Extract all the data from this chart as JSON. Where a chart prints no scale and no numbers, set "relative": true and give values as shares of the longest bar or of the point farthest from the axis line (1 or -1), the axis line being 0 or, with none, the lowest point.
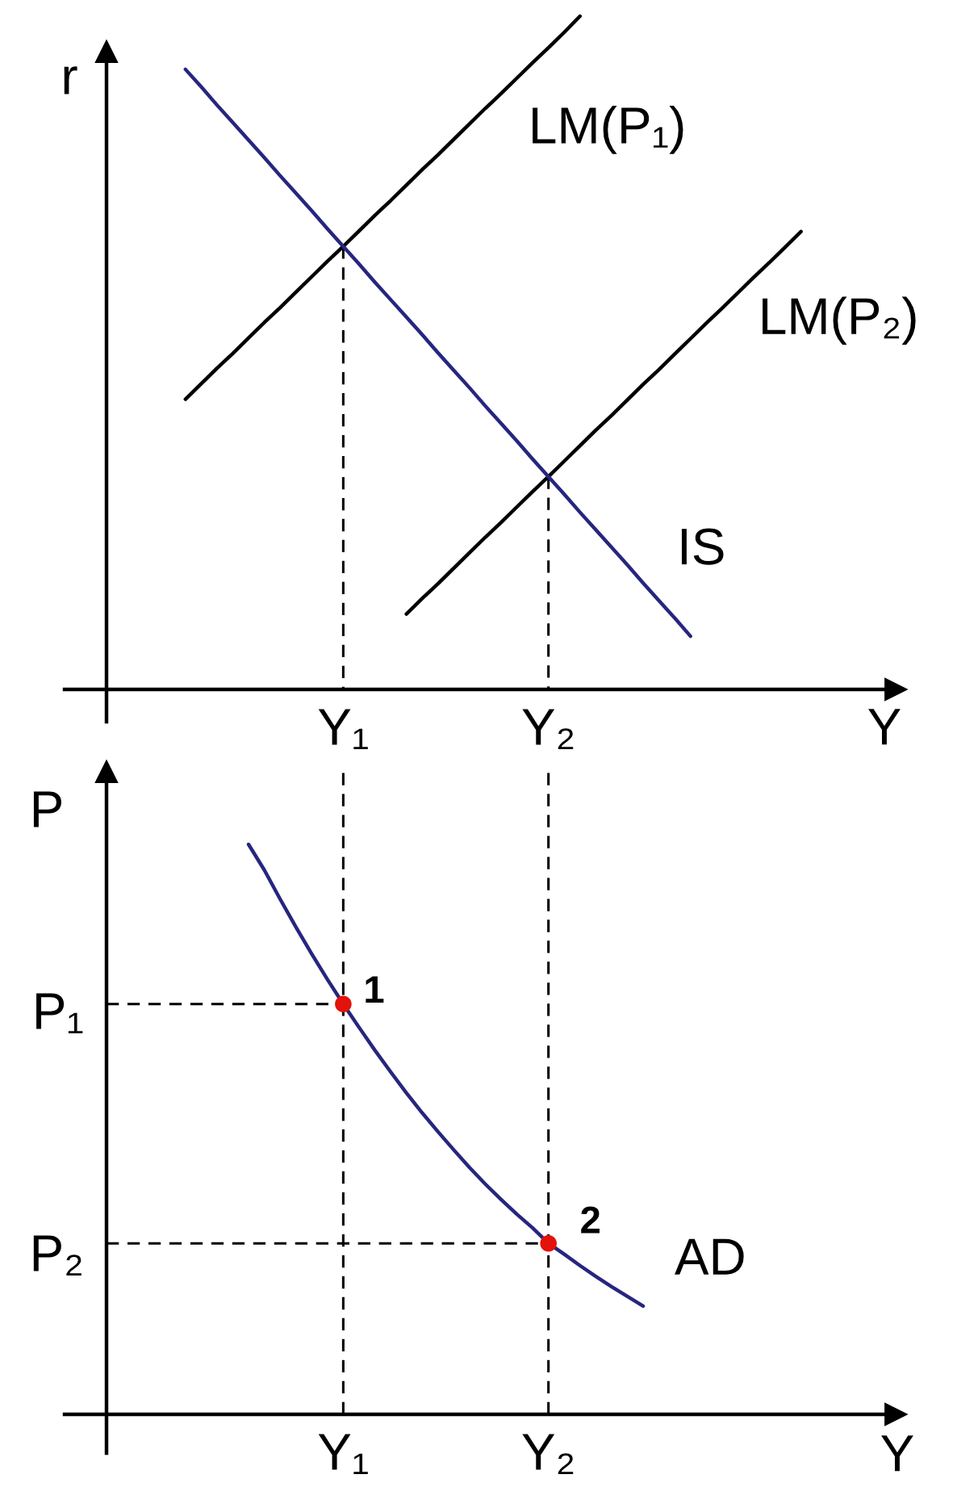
{
  "chart_data": [
    {
      "type": "line",
      "relative": true,
      "xlabel": "Y",
      "ylabel": "r",
      "line_style": "solid",
      "categories": [
        null,
        null,
        null,
        null,
        null,
        null,
        null,
        null,
        null,
        null,
        null,
        null,
        null,
        null,
        null,
        "Y₁",
        null,
        null,
        null,
        null,
        null,
        null,
        null,
        null,
        null,
        null,
        null,
        null,
        "Y₂",
        null,
        null,
        null,
        null,
        null,
        null,
        null,
        null,
        null,
        null,
        null,
        null,
        null,
        null,
        null,
        null,
        null,
        null,
        null,
        null,
        null,
        null
      ],
      "series": [
        {
          "name": "LM(P₁)",
          "color": "#000000",
          "values": [
            null,
            null,
            null,
            null,
            null,
            0.431,
            0.454,
            0.477,
            0.499,
            0.522,
            0.545,
            0.567,
            0.59,
            0.613,
            0.636,
            0.658,
            0.681,
            0.704,
            0.726,
            0.749,
            0.772,
            0.794,
            0.817,
            0.84,
            0.863,
            0.885,
            0.908,
            0.931,
            0.953,
            0.976,
            1.0,
            null,
            null,
            null,
            null,
            null,
            null,
            null,
            null,
            null,
            null,
            null,
            null,
            null,
            null,
            null,
            null,
            null,
            null,
            null,
            null
          ]
        },
        {
          "name": "LM(P₂)",
          "color": "#000000",
          "values": [
            null,
            null,
            null,
            null,
            null,
            null,
            null,
            null,
            null,
            null,
            null,
            null,
            null,
            null,
            null,
            null,
            null,
            null,
            null,
            0.112,
            0.135,
            0.157,
            0.18,
            0.203,
            0.226,
            0.248,
            0.271,
            0.294,
            0.316,
            0.339,
            0.362,
            0.385,
            0.407,
            0.43,
            0.453,
            0.475,
            0.498,
            0.521,
            0.544,
            0.566,
            0.589,
            0.612,
            0.634,
            0.657,
            0.68,
            null,
            null,
            null,
            null,
            null,
            null
          ]
        },
        {
          "name": "IS",
          "color": "#26267f",
          "values": [
            null,
            null,
            null,
            null,
            null,
            0.921,
            0.895,
            0.868,
            0.842,
            0.816,
            0.79,
            0.763,
            0.737,
            0.711,
            0.684,
            0.658,
            0.632,
            0.605,
            0.579,
            0.553,
            0.527,
            0.5,
            0.474,
            0.448,
            0.421,
            0.395,
            0.369,
            0.342,
            0.316,
            0.29,
            0.263,
            0.237,
            0.211,
            0.185,
            0.158,
            0.132,
            0.106,
            0.079,
            null,
            null,
            null,
            null,
            null,
            null,
            null,
            null,
            null,
            null,
            null,
            null,
            null
          ]
        },
        {
          "color": "#000000",
          "line_style": "dashed",
          "x": [
            "Y₁",
            "Y₁"
          ],
          "values": [
            0.658,
            0
          ]
        },
        {
          "color": "#000000",
          "line_style": "dashed",
          "x": [
            "Y₂",
            "Y₂"
          ],
          "values": [
            0.316,
            0
          ]
        }
      ]
    },
    {
      "type": "line",
      "relative": true,
      "xlabel": "Y",
      "ylabel": "P",
      "line_style": "solid",
      "categories": [
        null,
        null,
        null,
        null,
        null,
        null,
        null,
        null,
        null,
        null,
        null,
        null,
        null,
        null,
        null,
        "Y₁",
        null,
        null,
        null,
        null,
        null,
        null,
        null,
        null,
        null,
        null,
        null,
        null,
        "Y₂",
        null,
        null,
        null,
        null,
        null,
        null,
        null,
        null,
        null,
        null,
        null,
        null,
        null,
        null,
        null,
        null,
        null,
        null,
        null,
        null,
        null,
        null
      ],
      "series": [
        {
          "name": "AD",
          "color": "#26267f",
          "values": [
            null,
            null,
            null,
            null,
            null,
            null,
            null,
            null,
            null,
            1.0,
            0.955,
            0.904,
            0.855,
            0.808,
            0.763,
            0.72,
            0.679,
            0.639,
            0.601,
            0.564,
            0.529,
            0.496,
            0.464,
            0.433,
            0.404,
            0.377,
            0.351,
            0.327,
            0.3,
            0.281,
            0.261,
            0.242,
            0.224,
            0.207,
            0.19,
            null,
            null,
            null,
            null,
            null,
            null,
            null,
            null,
            null,
            null,
            null,
            null,
            null,
            null,
            null,
            null
          ]
        },
        {
          "type": "scatter",
          "color": "#e3120b",
          "marker": "circle",
          "x": [
            "Y₁",
            "Y₂"
          ],
          "values": [
            0.72,
            0.3
          ]
        },
        {
          "color": "#000000",
          "line_style": "dashed",
          "values": [
            0.72,
            0.72,
            0.72,
            0.72,
            0.72,
            0.72,
            0.72,
            0.72,
            0.72,
            0.72,
            0.72,
            0.72,
            0.72,
            0.72,
            0.72,
            0.72,
            null,
            null,
            null,
            null,
            null,
            null,
            null,
            null,
            null,
            null,
            null,
            null,
            null,
            null,
            null,
            null,
            null,
            null,
            null,
            null,
            null,
            null,
            null,
            null,
            null,
            null,
            null,
            null,
            null,
            null,
            null,
            null,
            null,
            null,
            null
          ]
        },
        {
          "color": "#000000",
          "line_style": "dashed",
          "values": [
            0.3,
            0.3,
            0.3,
            0.3,
            0.3,
            0.3,
            0.3,
            0.3,
            0.3,
            0.3,
            0.3,
            0.3,
            0.3,
            0.3,
            0.3,
            0.3,
            0.3,
            0.3,
            0.3,
            0.3,
            0.3,
            0.3,
            0.3,
            0.3,
            0.3,
            0.3,
            0.3,
            0.3,
            0.3,
            null,
            null,
            null,
            null,
            null,
            null,
            null,
            null,
            null,
            null,
            null,
            null,
            null,
            null,
            null,
            null,
            null,
            null,
            null,
            null,
            null,
            null
          ]
        }
      ],
      "ref_lines": [
        {
          "axis": "x",
          "value": "Y₁",
          "color": "#000000",
          "line_style": "dashed"
        },
        {
          "axis": "x",
          "value": "Y₂",
          "color": "#000000",
          "line_style": "dashed"
        }
      ],
      "annotations": [
        {
          "text": "1",
          "x": "Y₁",
          "y": 0.72
        },
        {
          "text": "2",
          "x": "Y₂",
          "y": 0.3
        },
        "P₁",
        "P₂"
      ]
    }
  ]
}
